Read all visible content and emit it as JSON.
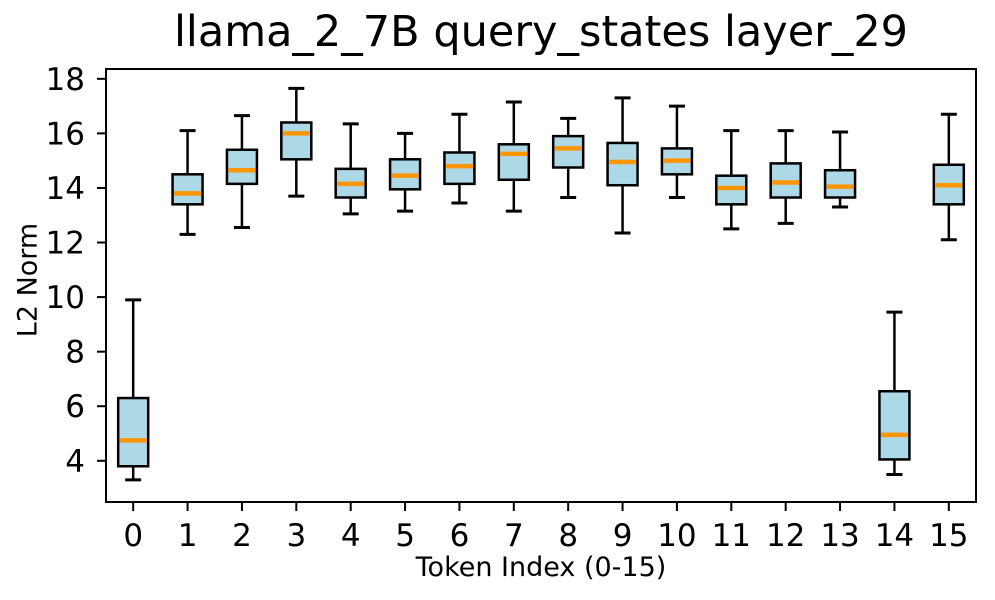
{
  "figure": {
    "background": "#ffffff"
  },
  "chart_data": {
    "type": "boxplot",
    "title": "llama_2_7B query_states layer_29",
    "xlabel": "Token Index (0-15)",
    "ylabel": "L2 Norm",
    "categories": [
      "0",
      "1",
      "2",
      "3",
      "4",
      "5",
      "6",
      "7",
      "8",
      "9",
      "10",
      "11",
      "12",
      "13",
      "14",
      "15"
    ],
    "yticks": [
      4,
      6,
      8,
      10,
      12,
      14,
      16,
      18
    ],
    "ylim": [
      2.49,
      18.36
    ],
    "grid": false,
    "legend": null,
    "boxes": [
      {
        "token": "0",
        "whisker_low": 3.3,
        "q1": 3.8,
        "median": 4.75,
        "q3": 6.3,
        "whisker_high": 9.9
      },
      {
        "token": "1",
        "whisker_low": 12.3,
        "q1": 13.4,
        "median": 13.8,
        "q3": 14.5,
        "whisker_high": 16.1
      },
      {
        "token": "2",
        "whisker_low": 12.55,
        "q1": 14.15,
        "median": 14.65,
        "q3": 15.4,
        "whisker_high": 16.65
      },
      {
        "token": "3",
        "whisker_low": 13.7,
        "q1": 15.05,
        "median": 16.0,
        "q3": 16.4,
        "whisker_high": 17.65
      },
      {
        "token": "4",
        "whisker_low": 13.05,
        "q1": 13.65,
        "median": 14.15,
        "q3": 14.7,
        "whisker_high": 16.35
      },
      {
        "token": "5",
        "whisker_low": 13.15,
        "q1": 13.95,
        "median": 14.45,
        "q3": 15.05,
        "whisker_high": 16.0
      },
      {
        "token": "6",
        "whisker_low": 13.45,
        "q1": 14.15,
        "median": 14.8,
        "q3": 15.3,
        "whisker_high": 16.7
      },
      {
        "token": "7",
        "whisker_low": 13.15,
        "q1": 14.3,
        "median": 15.25,
        "q3": 15.6,
        "whisker_high": 17.15
      },
      {
        "token": "8",
        "whisker_low": 13.65,
        "q1": 14.75,
        "median": 15.45,
        "q3": 15.9,
        "whisker_high": 16.55
      },
      {
        "token": "9",
        "whisker_low": 12.35,
        "q1": 14.1,
        "median": 14.95,
        "q3": 15.65,
        "whisker_high": 17.3
      },
      {
        "token": "10",
        "whisker_low": 13.65,
        "q1": 14.5,
        "median": 15.0,
        "q3": 15.45,
        "whisker_high": 17.0
      },
      {
        "token": "11",
        "whisker_low": 12.5,
        "q1": 13.4,
        "median": 14.0,
        "q3": 14.45,
        "whisker_high": 16.1
      },
      {
        "token": "12",
        "whisker_low": 12.7,
        "q1": 13.65,
        "median": 14.2,
        "q3": 14.9,
        "whisker_high": 16.1
      },
      {
        "token": "13",
        "whisker_low": 13.3,
        "q1": 13.65,
        "median": 14.05,
        "q3": 14.65,
        "whisker_high": 16.05
      },
      {
        "token": "14",
        "whisker_low": 3.5,
        "q1": 4.05,
        "median": 4.95,
        "q3": 6.55,
        "whisker_high": 9.45
      },
      {
        "token": "15",
        "whisker_low": 12.1,
        "q1": 13.4,
        "median": 14.1,
        "q3": 14.85,
        "whisker_high": 16.7
      }
    ],
    "colors": {
      "box_fill": "#add8e6",
      "box_edge": "#000000",
      "median": "#ff9500",
      "axis": "#000000",
      "text": "#000000"
    }
  }
}
